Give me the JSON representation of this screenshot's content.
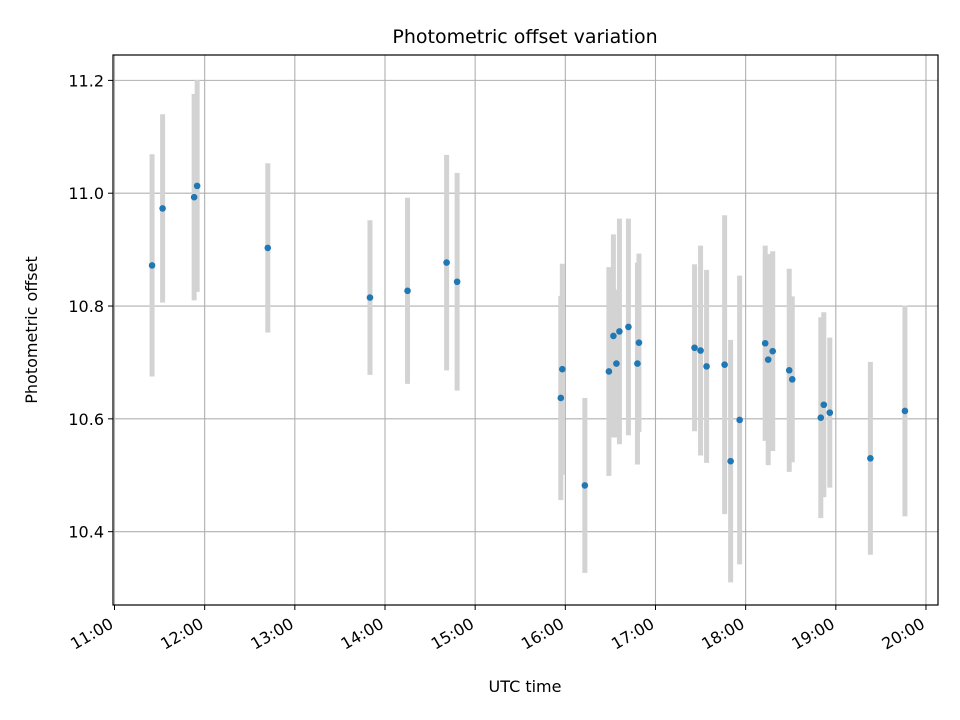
{
  "chart_data": {
    "type": "scatter",
    "title": "Photometric offset variation",
    "xlabel": "UTC time",
    "ylabel": "Photometric offset",
    "x_axis_type": "time",
    "x_range": [
      "10:59",
      "20:08"
    ],
    "ylim": [
      10.27,
      11.245
    ],
    "x_ticks": [
      "11:00",
      "12:00",
      "13:00",
      "14:00",
      "15:00",
      "16:00",
      "17:00",
      "18:00",
      "19:00",
      "20:00"
    ],
    "y_ticks": [
      10.4,
      10.6,
      10.8,
      11.0,
      11.2
    ],
    "y_tick_labels": [
      "10.4",
      "10.6",
      "10.8",
      "11.0",
      "11.2"
    ],
    "grid": true,
    "colors": {
      "points": "#1f77b4",
      "errorbars": "#d3d3d3",
      "grid": "#b0b0b0"
    },
    "points": [
      {
        "t": "11:25",
        "y": 10.872,
        "err": 0.197
      },
      {
        "t": "11:32",
        "y": 10.973,
        "err": 0.167
      },
      {
        "t": "11:53",
        "y": 10.993,
        "err": 0.183
      },
      {
        "t": "11:55",
        "y": 11.013,
        "err": 0.188
      },
      {
        "t": "12:42",
        "y": 10.903,
        "err": 0.15
      },
      {
        "t": "13:50",
        "y": 10.815,
        "err": 0.137
      },
      {
        "t": "14:15",
        "y": 10.827,
        "err": 0.165
      },
      {
        "t": "14:41",
        "y": 10.877,
        "err": 0.191
      },
      {
        "t": "14:48",
        "y": 10.843,
        "err": 0.193
      },
      {
        "t": "15:57",
        "y": 10.637,
        "err": 0.181
      },
      {
        "t": "15:58",
        "y": 10.688,
        "err": 0.187
      },
      {
        "t": "16:13",
        "y": 10.482,
        "err": 0.155
      },
      {
        "t": "16:29",
        "y": 10.684,
        "err": 0.185
      },
      {
        "t": "16:32",
        "y": 10.747,
        "err": 0.18
      },
      {
        "t": "16:34",
        "y": 10.698,
        "err": 0.131
      },
      {
        "t": "16:36",
        "y": 10.755,
        "err": 0.2
      },
      {
        "t": "16:42",
        "y": 10.763,
        "err": 0.192
      },
      {
        "t": "16:48",
        "y": 10.698,
        "err": 0.179
      },
      {
        "t": "16:49",
        "y": 10.735,
        "err": 0.158
      },
      {
        "t": "17:26",
        "y": 10.726,
        "err": 0.148
      },
      {
        "t": "17:30",
        "y": 10.721,
        "err": 0.186
      },
      {
        "t": "17:34",
        "y": 10.693,
        "err": 0.171
      },
      {
        "t": "17:46",
        "y": 10.696,
        "err": 0.265
      },
      {
        "t": "17:50",
        "y": 10.525,
        "err": 0.215
      },
      {
        "t": "17:56",
        "y": 10.598,
        "err": 0.256
      },
      {
        "t": "18:13",
        "y": 10.734,
        "err": 0.173
      },
      {
        "t": "18:15",
        "y": 10.705,
        "err": 0.187
      },
      {
        "t": "18:18",
        "y": 10.72,
        "err": 0.177
      },
      {
        "t": "18:29",
        "y": 10.686,
        "err": 0.18
      },
      {
        "t": "18:31",
        "y": 10.67,
        "err": 0.147
      },
      {
        "t": "18:50",
        "y": 10.602,
        "err": 0.178
      },
      {
        "t": "18:52",
        "y": 10.625,
        "err": 0.164
      },
      {
        "t": "18:56",
        "y": 10.611,
        "err": 0.133
      },
      {
        "t": "19:23",
        "y": 10.53,
        "err": 0.171
      },
      {
        "t": "19:46",
        "y": 10.614,
        "err": 0.187
      }
    ]
  }
}
